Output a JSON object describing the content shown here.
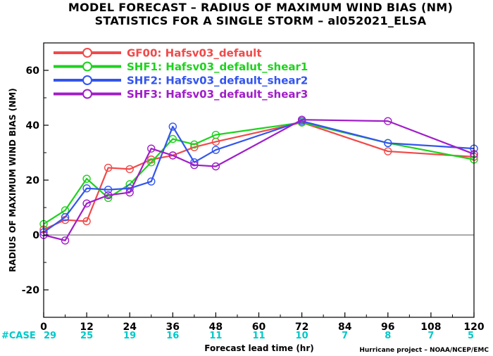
{
  "chart_data": {
    "type": "line",
    "title": "MODEL FORECAST – RADIUS OF MAXIMUM WIND BIAS (NM)",
    "subtitle": "STATISTICS FOR A SINGLE STORM – al052021_ELSA",
    "xlabel": "Forecast lead time (hr)",
    "ylabel": "RADIUS OF MAXIMUM WIND BIAS (NM)",
    "xlim": [
      0,
      120
    ],
    "ylim": [
      -30,
      70
    ],
    "x_ticks": [
      0,
      12,
      24,
      36,
      48,
      60,
      72,
      84,
      96,
      108,
      120
    ],
    "y_ticks": [
      -20,
      0,
      20,
      40,
      60
    ],
    "zero_line": true,
    "legend_position": "top-left",
    "case_label": "#CASE",
    "cases": [
      {
        "hour": 0,
        "count": "29"
      },
      {
        "hour": 12,
        "count": "25"
      },
      {
        "hour": 24,
        "count": "19"
      },
      {
        "hour": 36,
        "count": "16"
      },
      {
        "hour": 48,
        "count": "11"
      },
      {
        "hour": 60,
        "count": "11"
      },
      {
        "hour": 72,
        "count": "10"
      },
      {
        "hour": 84,
        "count": "7"
      },
      {
        "hour": 96,
        "count": "8"
      },
      {
        "hour": 108,
        "count": "7"
      },
      {
        "hour": 120,
        "count": "5"
      }
    ],
    "series": [
      {
        "id": "GF00",
        "label": "GF00: Hafsv03_default",
        "color": "#f04a4a",
        "x": [
          0,
          6,
          12,
          18,
          24,
          30,
          36,
          42,
          48,
          72,
          96,
          120
        ],
        "y": [
          2,
          5.5,
          5,
          24.5,
          24,
          27.5,
          29,
          32,
          34,
          41,
          30.5,
          28.5
        ]
      },
      {
        "id": "SHF1",
        "label": "SHF1: Hafsv03_defalut_shear1",
        "color": "#1ed21e",
        "x": [
          0,
          6,
          12,
          18,
          24,
          30,
          36,
          42,
          48,
          72,
          96,
          120
        ],
        "y": [
          4,
          9,
          20.5,
          13.5,
          18.5,
          26.5,
          35,
          33,
          36.5,
          41,
          33.5,
          27.5
        ]
      },
      {
        "id": "SHF2",
        "label": "SHF2: Hafsv03_default_shear2",
        "color": "#3355ee",
        "x": [
          0,
          6,
          12,
          18,
          24,
          30,
          36,
          42,
          48,
          72,
          96,
          120
        ],
        "y": [
          1,
          6.5,
          17,
          16.5,
          17,
          19.5,
          39.5,
          26.5,
          31,
          41.5,
          33.5,
          31.5
        ]
      },
      {
        "id": "SHF3",
        "label": "SHF3: Hafsv03_default_shear3",
        "color": "#a01ec8",
        "x": [
          0,
          6,
          12,
          18,
          24,
          30,
          36,
          42,
          48,
          72,
          96,
          120
        ],
        "y": [
          0,
          -2,
          11.5,
          14.5,
          15.5,
          31.5,
          29,
          25.5,
          25,
          42,
          41.5,
          29.5
        ]
      }
    ],
    "credit": "Hurricane project – NOAA/NCEP/EMC"
  }
}
